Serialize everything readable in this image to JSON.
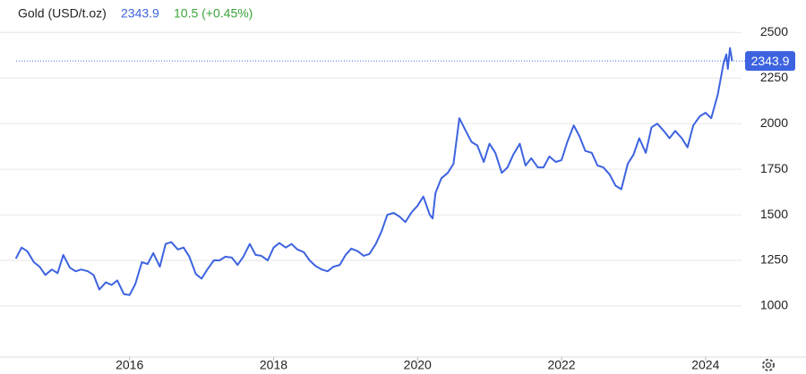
{
  "chart_data": {
    "type": "line",
    "title": "Gold (USD/t.oz)",
    "price": 2343.9,
    "change": "10.5 (+0.45%)",
    "color": "#3d63e0",
    "price_color": "#3d63e0",
    "change_color": "#3aa33a",
    "xlim": [
      2014.2,
      2024.5
    ],
    "xticks": [
      2016,
      2018,
      2020,
      2022,
      2024
    ],
    "ylim": [
      720,
      2580
    ],
    "yticks": [
      1000,
      1250,
      1500,
      1750,
      2000,
      2250,
      2500
    ],
    "grid": true,
    "x": [
      2014.42,
      2014.5,
      2014.58,
      2014.67,
      2014.75,
      2014.83,
      2014.92,
      2015.0,
      2015.08,
      2015.17,
      2015.25,
      2015.33,
      2015.42,
      2015.5,
      2015.58,
      2015.67,
      2015.75,
      2015.83,
      2015.92,
      2016.0,
      2016.08,
      2016.17,
      2016.25,
      2016.33,
      2016.42,
      2016.5,
      2016.58,
      2016.67,
      2016.75,
      2016.83,
      2016.92,
      2017.0,
      2017.08,
      2017.17,
      2017.25,
      2017.33,
      2017.42,
      2017.5,
      2017.58,
      2017.67,
      2017.75,
      2017.83,
      2017.92,
      2018.0,
      2018.08,
      2018.17,
      2018.25,
      2018.33,
      2018.42,
      2018.5,
      2018.58,
      2018.67,
      2018.75,
      2018.83,
      2018.92,
      2019.0,
      2019.08,
      2019.17,
      2019.25,
      2019.33,
      2019.42,
      2019.5,
      2019.58,
      2019.67,
      2019.75,
      2019.83,
      2019.92,
      2020.0,
      2020.08,
      2020.17,
      2020.21,
      2020.25,
      2020.33,
      2020.42,
      2020.5,
      2020.58,
      2020.67,
      2020.75,
      2020.83,
      2020.92,
      2021.0,
      2021.08,
      2021.17,
      2021.25,
      2021.33,
      2021.42,
      2021.5,
      2021.58,
      2021.67,
      2021.75,
      2021.83,
      2021.92,
      2022.0,
      2022.08,
      2022.17,
      2022.25,
      2022.33,
      2022.42,
      2022.5,
      2022.58,
      2022.67,
      2022.75,
      2022.83,
      2022.92,
      2023.0,
      2023.08,
      2023.17,
      2023.25,
      2023.33,
      2023.42,
      2023.5,
      2023.58,
      2023.67,
      2023.75,
      2023.83,
      2023.92,
      2024.0,
      2024.08,
      2024.17,
      2024.25,
      2024.29,
      2024.31,
      2024.34,
      2024.37
    ],
    "values": [
      1260,
      1320,
      1300,
      1240,
      1215,
      1170,
      1200,
      1180,
      1280,
      1210,
      1190,
      1200,
      1190,
      1170,
      1090,
      1130,
      1115,
      1140,
      1065,
      1060,
      1120,
      1240,
      1230,
      1290,
      1215,
      1340,
      1350,
      1310,
      1320,
      1270,
      1175,
      1150,
      1200,
      1250,
      1250,
      1270,
      1265,
      1225,
      1270,
      1340,
      1280,
      1275,
      1250,
      1320,
      1345,
      1320,
      1340,
      1310,
      1295,
      1250,
      1220,
      1200,
      1190,
      1215,
      1225,
      1280,
      1315,
      1300,
      1275,
      1285,
      1340,
      1410,
      1500,
      1510,
      1490,
      1460,
      1515,
      1550,
      1600,
      1500,
      1480,
      1620,
      1700,
      1730,
      1780,
      2030,
      1960,
      1900,
      1880,
      1790,
      1890,
      1840,
      1730,
      1760,
      1830,
      1890,
      1770,
      1810,
      1760,
      1760,
      1820,
      1790,
      1800,
      1900,
      1990,
      1930,
      1850,
      1840,
      1770,
      1760,
      1720,
      1660,
      1640,
      1780,
      1830,
      1920,
      1840,
      1980,
      2000,
      1960,
      1920,
      1960,
      1920,
      1870,
      1990,
      2040,
      2060,
      2030,
      2160,
      2330,
      2380,
      2300,
      2415,
      2343.9
    ]
  }
}
